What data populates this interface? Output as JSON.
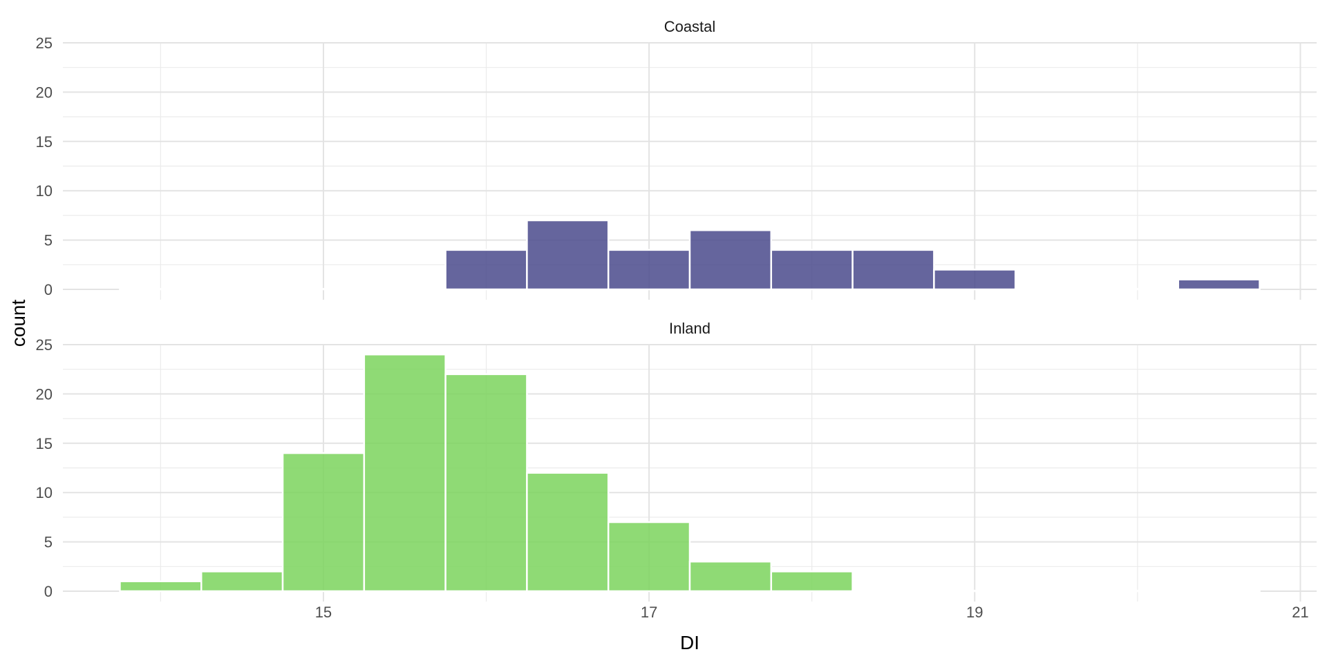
{
  "chart_data": {
    "type": "bar",
    "subtype": "histogram-facets",
    "xlabel": "DI",
    "ylabel": "count",
    "xlim": [
      13.4,
      21.1
    ],
    "ylim": [
      0,
      25
    ],
    "x_ticks": [
      15,
      17,
      19,
      21
    ],
    "x_ticks_labels": [
      "15",
      "17",
      "19",
      "21"
    ],
    "y_ticks": [
      0,
      5,
      10,
      15,
      20,
      25
    ],
    "y_ticks_labels": [
      "0",
      "5",
      "10",
      "15",
      "20",
      "25"
    ],
    "bin_width": 0.5,
    "grid": true,
    "legend": "none",
    "facets": [
      {
        "label": "Coastal",
        "color": "#4a4a8c",
        "bins": [
          {
            "x": 14.0,
            "count": 0
          },
          {
            "x": 14.5,
            "count": 0
          },
          {
            "x": 15.0,
            "count": 0
          },
          {
            "x": 15.5,
            "count": 0
          },
          {
            "x": 16.0,
            "count": 4
          },
          {
            "x": 16.5,
            "count": 7
          },
          {
            "x": 17.0,
            "count": 4
          },
          {
            "x": 17.5,
            "count": 6
          },
          {
            "x": 18.0,
            "count": 4
          },
          {
            "x": 18.5,
            "count": 4
          },
          {
            "x": 19.0,
            "count": 2
          },
          {
            "x": 19.5,
            "count": 0
          },
          {
            "x": 20.0,
            "count": 0
          },
          {
            "x": 20.5,
            "count": 1
          }
        ]
      },
      {
        "label": "Inland",
        "color": "#7bd35d",
        "bins": [
          {
            "x": 14.0,
            "count": 1
          },
          {
            "x": 14.5,
            "count": 2
          },
          {
            "x": 15.0,
            "count": 14
          },
          {
            "x": 15.5,
            "count": 24
          },
          {
            "x": 16.0,
            "count": 22
          },
          {
            "x": 16.5,
            "count": 12
          },
          {
            "x": 17.0,
            "count": 7
          },
          {
            "x": 17.5,
            "count": 3
          },
          {
            "x": 18.0,
            "count": 2
          },
          {
            "x": 18.5,
            "count": 0
          },
          {
            "x": 19.0,
            "count": 0
          },
          {
            "x": 19.5,
            "count": 0
          },
          {
            "x": 20.0,
            "count": 0
          },
          {
            "x": 20.5,
            "count": 0
          }
        ]
      }
    ]
  }
}
